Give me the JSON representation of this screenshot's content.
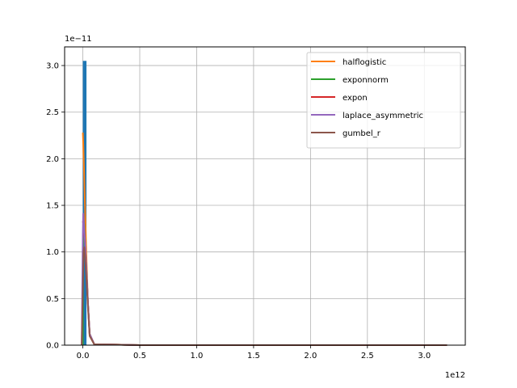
{
  "chart_data": {
    "type": "line",
    "title": "",
    "xlabel": "",
    "ylabel": "",
    "x_offset_label": "1e12",
    "y_offset_label": "1e−11",
    "xlim": [
      -0.16,
      3.36
    ],
    "ylim": [
      0,
      3.2
    ],
    "xticks": [
      0.0,
      0.5,
      1.0,
      1.5,
      2.0,
      2.5,
      3.0
    ],
    "xtick_labels": [
      "0.0",
      "0.5",
      "1.0",
      "1.5",
      "2.0",
      "2.5",
      "3.0"
    ],
    "yticks": [
      0.0,
      0.5,
      1.0,
      1.5,
      2.0,
      2.5,
      3.0
    ],
    "ytick_labels": [
      "0.0",
      "0.5",
      "1.0",
      "1.5",
      "2.0",
      "2.5",
      "3.0"
    ],
    "grid": true,
    "legend_position": "top-right",
    "histogram": {
      "color": "#1f77b4",
      "bin_edges": [
        0.0,
        0.032
      ],
      "heights": [
        3.05
      ]
    },
    "series": [
      {
        "name": "halflogistic",
        "color": "#ff7f0e",
        "x": [
          0.0,
          0.004,
          0.01,
          0.02,
          0.03,
          0.045,
          0.06,
          0.1,
          0.5,
          1.0,
          2.0,
          3.2
        ],
        "y": [
          2.28,
          2.15,
          1.9,
          1.45,
          1.0,
          0.45,
          0.1,
          0.01,
          0.0,
          0.0,
          0.0,
          0.0
        ]
      },
      {
        "name": "exponnorm",
        "color": "#2ca02c",
        "x": [
          0.0,
          0.002,
          0.006,
          0.012,
          0.02,
          0.03,
          0.045,
          0.06,
          0.1,
          0.5,
          1.0,
          2.0,
          3.2
        ],
        "y": [
          0.0,
          0.9,
          1.35,
          1.3,
          1.1,
          0.85,
          0.45,
          0.12,
          0.01,
          0.0,
          0.0,
          0.0,
          0.0
        ]
      },
      {
        "name": "expon",
        "color": "#d62728",
        "x": [
          0.0,
          0.005,
          0.01,
          0.02,
          0.03,
          0.045,
          0.06,
          0.1,
          0.5,
          1.0,
          2.0,
          3.2
        ],
        "y": [
          1.33,
          1.3,
          1.25,
          1.1,
          0.85,
          0.45,
          0.12,
          0.01,
          0.0,
          0.0,
          0.0,
          0.0
        ]
      },
      {
        "name": "laplace_asymmetric",
        "color": "#9467bd",
        "x": [
          -0.01,
          0.0,
          0.003,
          0.01,
          0.02,
          0.03,
          0.045,
          0.06,
          0.1,
          0.5,
          1.0,
          2.0,
          3.2
        ],
        "y": [
          0.0,
          1.2,
          1.41,
          1.3,
          1.1,
          0.85,
          0.45,
          0.12,
          0.01,
          0.0,
          0.0,
          0.0,
          0.0
        ]
      },
      {
        "name": "gumbel_r",
        "color": "#8c564b",
        "x": [
          -0.01,
          0.0,
          0.006,
          0.012,
          0.02,
          0.03,
          0.045,
          0.06,
          0.1,
          0.5,
          1.0,
          2.0,
          3.2
        ],
        "y": [
          0.0,
          0.6,
          1.0,
          1.05,
          0.95,
          0.75,
          0.4,
          0.1,
          0.01,
          0.0,
          0.0,
          0.0,
          0.0
        ]
      }
    ]
  }
}
